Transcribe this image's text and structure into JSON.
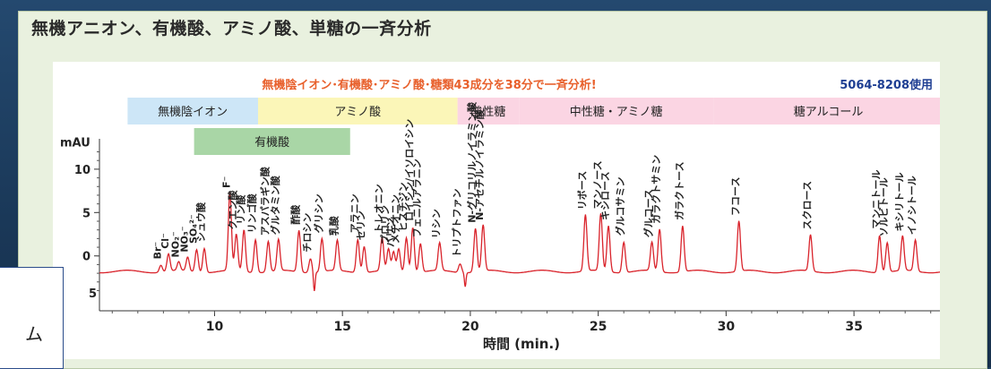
{
  "slide_title": "無機アニオン、有機酸、アミノ酸、単糖の一斉分析",
  "overlay_text": "ム",
  "chart_data": {
    "type": "line",
    "headline": "無機陰イオン･有機酸･アミノ酸･糖類43成分を38分で一斉分析!",
    "product_code": "5064-8208使用",
    "xlabel": "時間 (min.)",
    "ylabel": "mAU",
    "xlim": [
      5.5,
      38.5
    ],
    "ylim": [
      -5.5,
      13.5
    ],
    "xticks": [
      10,
      15,
      20,
      25,
      30,
      35
    ],
    "yticks": [
      0,
      5,
      10
    ],
    "ytick_labels": [
      "0",
      "5",
      "10"
    ],
    "partial_tick_label": "5",
    "baseline": -1.8,
    "line_color": "#d9232b",
    "category_bands": [
      {
        "label": "無機陰イオン",
        "x0": 6.6,
        "x1": 11.7,
        "color": "#cde6f7",
        "row": 1
      },
      {
        "label": "アミノ酸",
        "x0": 11.7,
        "x1": 19.5,
        "color": "#fbf6b8",
        "row": 1
      },
      {
        "label": "酸性糖",
        "x0": 19.5,
        "x1": 21.9,
        "color": "#fbd5e3",
        "row": 1
      },
      {
        "label": "中性糖・アミノ糖",
        "x0": 21.9,
        "x1": 29.5,
        "color": "#fbd5e3",
        "row": 1
      },
      {
        "label": "糖アルコール",
        "x0": 29.5,
        "x1": 38.5,
        "color": "#fbd5e3",
        "row": 1
      },
      {
        "label": "有機酸",
        "x0": 9.2,
        "x1": 15.3,
        "color": "#a9d6a6",
        "row": 2
      }
    ],
    "peaks": [
      {
        "x": 7.9,
        "height": 0.8,
        "label": "Br⁻"
      },
      {
        "x": 8.2,
        "height": 2.0,
        "label": "Cl⁻"
      },
      {
        "x": 8.6,
        "height": 1.0,
        "label": "NO₂⁻"
      },
      {
        "x": 8.95,
        "height": 1.6,
        "label": "NO₃⁻"
      },
      {
        "x": 9.3,
        "height": 2.6,
        "label": "SO₄²⁻"
      },
      {
        "x": 9.6,
        "height": 2.8,
        "label": "シュウ酸"
      },
      {
        "x": 10.6,
        "height": 9.0,
        "label": "F⁻"
      },
      {
        "x": 10.85,
        "height": 4.2,
        "label": "クエン酸"
      },
      {
        "x": 11.15,
        "height": 4.8,
        "label": "リン酸"
      },
      {
        "x": 11.6,
        "height": 3.8,
        "label": "リンゴ酸"
      },
      {
        "x": 12.1,
        "height": 3.5,
        "label": "アスパラギン酸"
      },
      {
        "x": 12.5,
        "height": 3.6,
        "label": "グルタミン酸"
      },
      {
        "x": 13.3,
        "height": 4.8,
        "label": "酢酸"
      },
      {
        "x": 13.75,
        "height": 1.6,
        "label": "チロシン"
      },
      {
        "x": 14.2,
        "height": 3.8,
        "label": "グリシン"
      },
      {
        "x": 14.8,
        "height": 3.5,
        "label": "乳酸"
      },
      {
        "x": 15.6,
        "height": 3.8,
        "label": "アラニン"
      },
      {
        "x": 15.85,
        "height": 3.0,
        "label": "セリン"
      },
      {
        "x": 16.55,
        "height": 3.8,
        "label": "トレオニン"
      },
      {
        "x": 16.8,
        "height": 2.5,
        "label": "プロリン"
      },
      {
        "x": 17.0,
        "height": 2.2,
        "label": "バリン"
      },
      {
        "x": 17.2,
        "height": 2.6,
        "label": "メチオニン"
      },
      {
        "x": 17.5,
        "height": 4.0,
        "label": "ヒスチジン"
      },
      {
        "x": 17.75,
        "height": 5.2,
        "label": "ロイシン/イソロイシン"
      },
      {
        "x": 18.05,
        "height": 3.3,
        "label": "フェニルアラニン"
      },
      {
        "x": 18.8,
        "height": 3.2,
        "label": "リシン"
      },
      {
        "x": 19.6,
        "height": 1.0,
        "label": "トリプトファン"
      },
      {
        "x": 20.2,
        "height": 5.0,
        "label": "N-グリコリルノイラミン酸"
      },
      {
        "x": 20.5,
        "height": 5.3,
        "label": "N-アセチルノイラミン酸"
      },
      {
        "x": 24.5,
        "height": 6.5,
        "label": "リボース"
      },
      {
        "x": 25.1,
        "height": 6.6,
        "label": "マンノース"
      },
      {
        "x": 25.4,
        "height": 5.3,
        "label": "キシロース"
      },
      {
        "x": 26.0,
        "height": 3.5,
        "label": "グルコサミン"
      },
      {
        "x": 27.1,
        "height": 3.3,
        "label": "グルコース"
      },
      {
        "x": 27.4,
        "height": 4.9,
        "label": "ガラクトサミン"
      },
      {
        "x": 28.3,
        "height": 5.3,
        "label": "ガラクトース"
      },
      {
        "x": 30.5,
        "height": 5.8,
        "label": "フコース"
      },
      {
        "x": 33.3,
        "height": 4.2,
        "label": "スクロース"
      },
      {
        "x": 36.0,
        "height": 4.3,
        "label": "マンニトール"
      },
      {
        "x": 36.3,
        "height": 3.4,
        "label": "ソルビトール"
      },
      {
        "x": 36.9,
        "height": 4.0,
        "label": "キシリトール"
      },
      {
        "x": 37.4,
        "height": 3.6,
        "label": "イノシトール"
      }
    ]
  }
}
